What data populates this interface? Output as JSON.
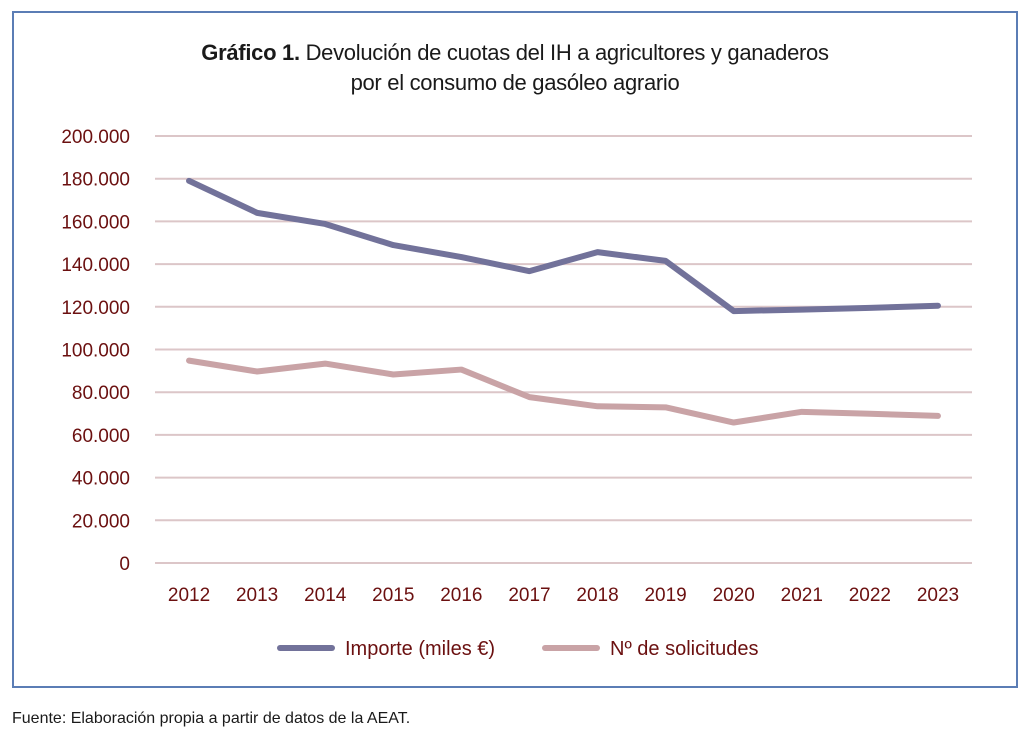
{
  "chart_data": {
    "type": "line",
    "title_bold": "Gráfico 1.",
    "title_rest_line1": "Devolución de cuotas del IH a agricultores y ganaderos",
    "title_line2": "por el consumo de gasóleo agrario",
    "xlabel": "",
    "ylabel": "",
    "ylim": [
      0,
      200000
    ],
    "yticks": [
      0,
      20000,
      40000,
      60000,
      80000,
      100000,
      120000,
      140000,
      160000,
      180000,
      200000
    ],
    "ytick_labels": [
      "0",
      "20.000",
      "40.000",
      "60.000",
      "80.000",
      "100.000",
      "120.000",
      "140.000",
      "160.000",
      "180.000",
      "200.000"
    ],
    "grid": true,
    "legend_position": "bottom-center",
    "categories": [
      "2012",
      "2013",
      "2014",
      "2015",
      "2016",
      "2017",
      "2018",
      "2019",
      "2020",
      "2021",
      "2022",
      "2023"
    ],
    "series": [
      {
        "name": "Importe (miles €)",
        "color": "#72729a",
        "values": [
          179000,
          164000,
          158800,
          148900,
          143300,
          136700,
          145600,
          141500,
          118000,
          118700,
          119500,
          120500
        ]
      },
      {
        "name": "Nº de solicitudes",
        "color": "#c9a3a6",
        "values": [
          94800,
          89700,
          93400,
          88300,
          90600,
          77700,
          73400,
          72900,
          65800,
          70800,
          69900,
          68900
        ]
      }
    ]
  },
  "source": "Fuente: Elaboración propia a partir de datos de la AEAT.",
  "colors": {
    "frame": "#5b7db5",
    "grid": "#dcc6c8",
    "axis_text": "#6b1010"
  }
}
